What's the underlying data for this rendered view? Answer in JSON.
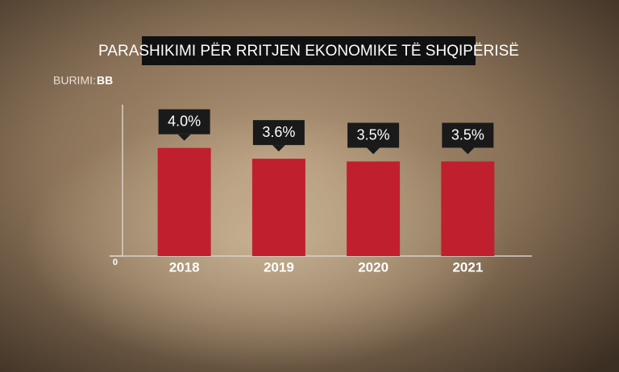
{
  "chart_data": {
    "type": "bar",
    "title": "PARASHIKIMI PËR RRITJEN EKONOMIKE TË SHQIPËRISË",
    "source_label": "BURIMI:",
    "source": "BB",
    "categories": [
      "2018",
      "2019",
      "2020",
      "2021"
    ],
    "values": [
      4.0,
      3.6,
      3.5,
      3.5
    ],
    "value_labels": [
      "4.0%",
      "3.6%",
      "3.5%",
      "3.5%"
    ],
    "color": "#c0202e",
    "ylim": [
      0,
      5.6
    ],
    "yticks": [
      0
    ]
  }
}
